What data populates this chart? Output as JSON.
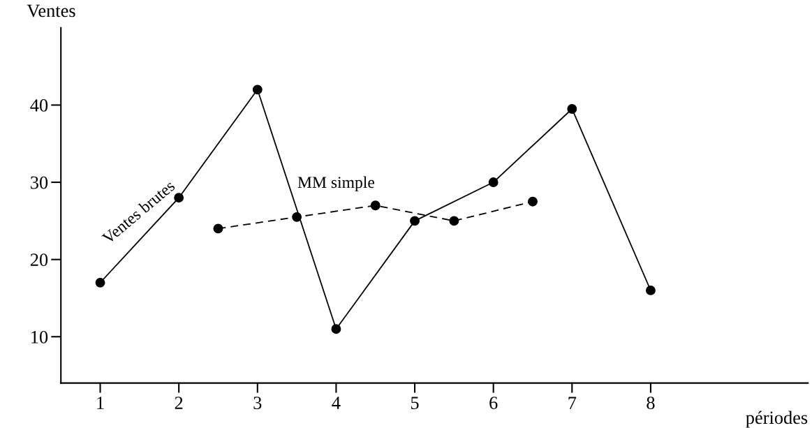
{
  "chart_data": {
    "type": "line",
    "xlabel": "périodes",
    "ylabel": "Ventes",
    "series": [
      {
        "name": "Ventes brutes",
        "color": "#000000",
        "x": [
          1,
          2,
          3,
          4,
          5,
          6,
          7,
          8
        ],
        "values": [
          17,
          28,
          42,
          11,
          25,
          30,
          39.5,
          16
        ],
        "line_style": "solid"
      },
      {
        "name": "MM simple",
        "color": "#000000",
        "x": [
          2.5,
          3.5,
          4.5,
          5.5,
          6.5
        ],
        "values": [
          24,
          25.5,
          27,
          25,
          27.5
        ],
        "line_style": "dashed"
      }
    ],
    "xlim": [
      0.5,
      10
    ],
    "xticks": [
      1,
      2,
      3,
      4,
      5,
      6,
      7,
      8
    ],
    "ylim": [
      4,
      50
    ],
    "yticks": [
      10,
      20,
      30,
      40
    ],
    "marker": "circle",
    "grid": false,
    "legend": false
  }
}
